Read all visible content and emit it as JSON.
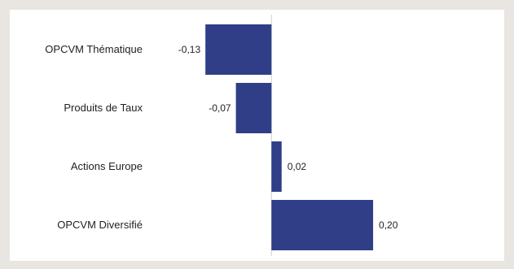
{
  "chart_data": {
    "type": "bar",
    "orientation": "horizontal",
    "categories": [
      "OPCVM Thématique",
      "Produits de Taux",
      "Actions Europe",
      "OPCVM Diversifié"
    ],
    "values": [
      -0.13,
      -0.07,
      0.02,
      0.2
    ],
    "value_labels": [
      "-0,13",
      "-0,07",
      "0,02",
      "0,20"
    ],
    "xlim": [
      -0.22,
      0.24
    ],
    "grid": false,
    "bar_color": "#2f3e87",
    "title": "",
    "xlabel": "",
    "ylabel": ""
  }
}
